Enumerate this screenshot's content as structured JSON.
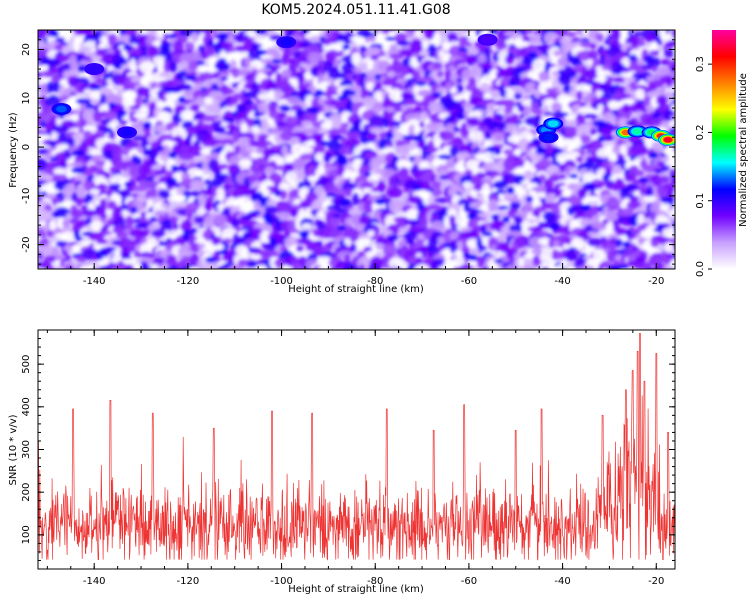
{
  "title": "KOM5.2024.051.11.41.G08",
  "chart_data": [
    {
      "type": "heatmap",
      "xlabel": "Height of straight line (km)",
      "ylabel": "Frequency (Hz)",
      "xlim": [
        -152,
        -16
      ],
      "ylim": [
        -25,
        24
      ],
      "xticks": [
        -140,
        -120,
        -100,
        -80,
        -60,
        -40,
        -20
      ],
      "yticks": [
        -20,
        -10,
        0,
        10,
        20
      ],
      "colorbar": {
        "label": "Normalized spectral amplitude",
        "range": [
          0.0,
          0.35
        ],
        "ticks": [
          0.0,
          0.1,
          0.2,
          0.3
        ],
        "colors": [
          "#ffffff",
          "#c8a0ff",
          "#7000ff",
          "#0000ff",
          "#00ffff",
          "#00ff00",
          "#ffff00",
          "#ff8000",
          "#ff0000",
          "#ff00a0"
        ]
      },
      "background_level": 0.05,
      "hotspots": [
        {
          "x": -43.5,
          "y": 3.5,
          "value": 0.14
        },
        {
          "x": -42.0,
          "y": 4.8,
          "value": 0.15
        },
        {
          "x": -43.0,
          "y": 2.0,
          "value": 0.12
        },
        {
          "x": -26.5,
          "y": 3.0,
          "value": 0.28
        },
        {
          "x": -24.0,
          "y": 3.2,
          "value": 0.17
        },
        {
          "x": -21.0,
          "y": 3.0,
          "value": 0.18
        },
        {
          "x": -19.0,
          "y": 2.3,
          "value": 0.3
        },
        {
          "x": -17.5,
          "y": 1.5,
          "value": 0.32
        },
        {
          "x": -147.0,
          "y": 7.8,
          "value": 0.13
        },
        {
          "x": -133.0,
          "y": 3.0,
          "value": 0.11
        },
        {
          "x": -99.0,
          "y": 21.5,
          "value": 0.11
        },
        {
          "x": -140.0,
          "y": 16.0,
          "value": 0.1
        },
        {
          "x": -56.0,
          "y": 22.0,
          "value": 0.09
        }
      ]
    },
    {
      "type": "line",
      "xlabel": "Height of straight line (km)",
      "ylabel": "SNR (10 * v/v)",
      "xlim": [
        -152,
        -16
      ],
      "ylim": [
        20,
        580
      ],
      "xticks": [
        -140,
        -120,
        -100,
        -80,
        -60,
        -40,
        -20
      ],
      "yticks": [
        100,
        200,
        300,
        400,
        500
      ],
      "series": [
        {
          "color": "#ee3333",
          "x_range": [
            -152,
            -16
          ],
          "samples": 1400,
          "baseline_mean": 120,
          "noise_spread": 60,
          "peaks": [
            {
              "x": -152.0,
              "y": 320
            },
            {
              "x": -144.5,
              "y": 395
            },
            {
              "x": -136.5,
              "y": 415
            },
            {
              "x": -127.5,
              "y": 385
            },
            {
              "x": -114.5,
              "y": 350
            },
            {
              "x": -102.0,
              "y": 390
            },
            {
              "x": -93.5,
              "y": 385
            },
            {
              "x": -77.5,
              "y": 395
            },
            {
              "x": -67.5,
              "y": 345
            },
            {
              "x": -61.0,
              "y": 405
            },
            {
              "x": -50.0,
              "y": 345
            },
            {
              "x": -44.5,
              "y": 395
            },
            {
              "x": -31.5,
              "y": 380
            },
            {
              "x": -26.5,
              "y": 440
            },
            {
              "x": -25.0,
              "y": 485
            },
            {
              "x": -24.0,
              "y": 530
            },
            {
              "x": -23.5,
              "y": 572
            },
            {
              "x": -22.5,
              "y": 460
            },
            {
              "x": -20.0,
              "y": 525
            },
            {
              "x": -17.5,
              "y": 340
            }
          ]
        }
      ]
    }
  ]
}
